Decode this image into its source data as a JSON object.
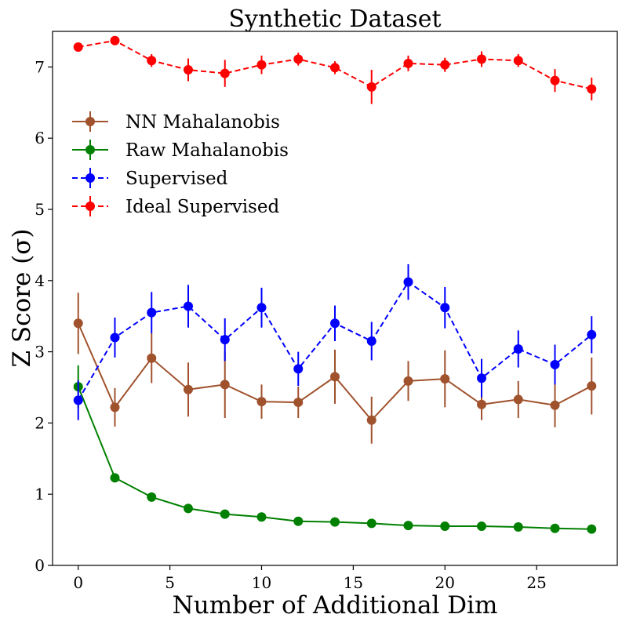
{
  "chart_data": {
    "type": "line",
    "title": "Synthetic Dataset",
    "xlabel": "Number of Additional Dim",
    "ylabel": "Z Score (σ)",
    "xlim": [
      -1.4,
      29.4
    ],
    "ylim": [
      0,
      7.5
    ],
    "xticks": [
      0,
      5,
      10,
      15,
      20,
      25
    ],
    "yticks": [
      0,
      1,
      2,
      3,
      4,
      5,
      6,
      7
    ],
    "x": [
      0,
      2,
      4,
      6,
      8,
      10,
      12,
      14,
      16,
      18,
      20,
      22,
      24,
      26,
      28
    ],
    "legend_position": "upper-left",
    "series": [
      {
        "name": "NN Mahalanobis",
        "color": "#a0522d",
        "linestyle": "solid",
        "values": [
          3.4,
          2.22,
          2.91,
          2.47,
          2.54,
          2.3,
          2.29,
          2.65,
          2.04,
          2.59,
          2.62,
          2.26,
          2.33,
          2.25,
          2.52
        ],
        "errors": [
          0.43,
          0.27,
          0.35,
          0.38,
          0.47,
          0.24,
          0.22,
          0.38,
          0.33,
          0.28,
          0.4,
          0.22,
          0.26,
          0.31,
          0.4
        ]
      },
      {
        "name": "Raw Mahalanobis",
        "color": "#008000",
        "linestyle": "solid",
        "values": [
          2.51,
          1.23,
          0.96,
          0.8,
          0.72,
          0.68,
          0.62,
          0.61,
          0.59,
          0.56,
          0.55,
          0.55,
          0.54,
          0.52,
          0.51
        ],
        "errors": [
          0.3,
          0.02,
          0.02,
          0.02,
          0.02,
          0.02,
          0.02,
          0.02,
          0.02,
          0.02,
          0.02,
          0.02,
          0.02,
          0.02,
          0.02
        ]
      },
      {
        "name": "Supervised",
        "color": "#0000ff",
        "linestyle": "dashed",
        "values": [
          2.32,
          3.2,
          3.55,
          3.64,
          3.17,
          3.62,
          2.76,
          3.4,
          3.15,
          3.98,
          3.62,
          2.63,
          3.04,
          2.82,
          3.24
        ],
        "errors": [
          0.28,
          0.28,
          0.29,
          0.3,
          0.3,
          0.28,
          0.24,
          0.25,
          0.27,
          0.25,
          0.29,
          0.27,
          0.26,
          0.28,
          0.26
        ]
      },
      {
        "name": "Ideal Supervised",
        "color": "#ff0000",
        "linestyle": "dashed",
        "values": [
          7.28,
          7.37,
          7.09,
          6.96,
          6.91,
          7.03,
          7.11,
          6.99,
          6.72,
          7.05,
          7.03,
          7.11,
          7.09,
          6.81,
          6.69
        ],
        "errors": [
          0.03,
          0.04,
          0.09,
          0.16,
          0.19,
          0.13,
          0.09,
          0.09,
          0.24,
          0.11,
          0.1,
          0.11,
          0.09,
          0.16,
          0.16
        ]
      }
    ]
  }
}
